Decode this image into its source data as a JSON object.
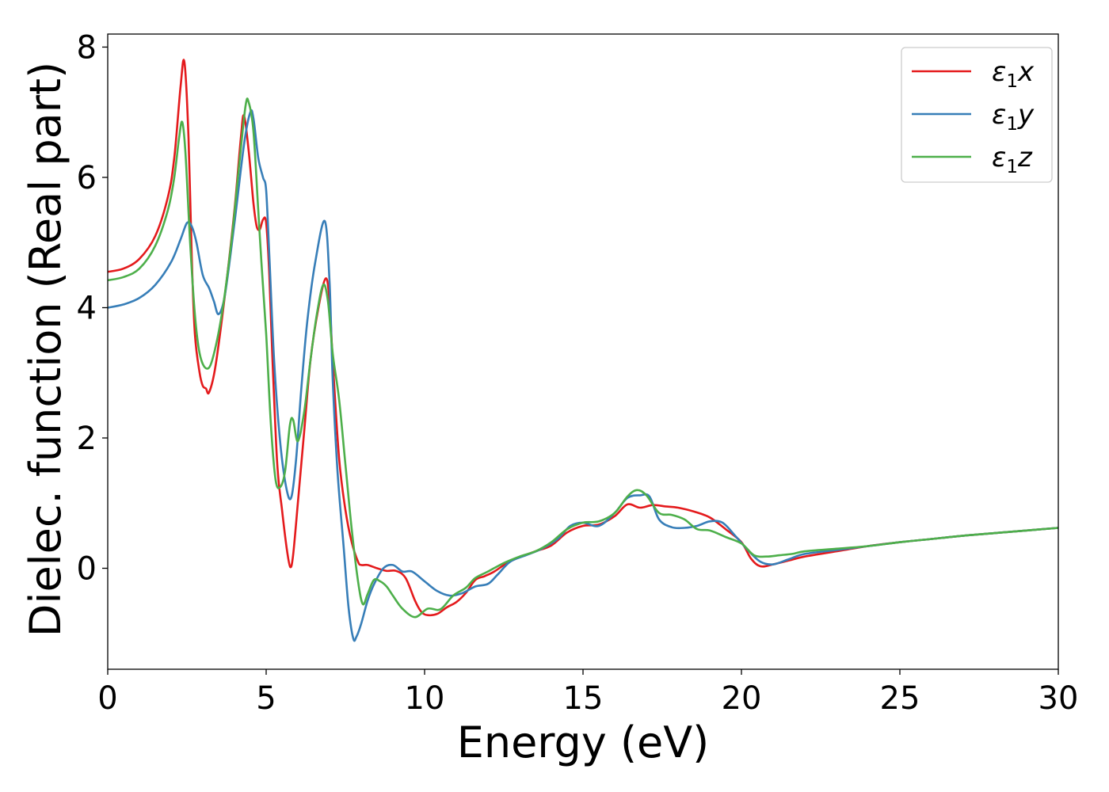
{
  "chart_data": {
    "type": "line",
    "title": "",
    "xlabel": "Energy (eV)",
    "ylabel": "Dielec. function (Real part)",
    "xlim": [
      0,
      30
    ],
    "ylim": [
      -1.55,
      8.2
    ],
    "xticks": [
      0,
      5,
      10,
      15,
      20,
      25,
      30
    ],
    "yticks": [
      0,
      2,
      4,
      6,
      8
    ],
    "grid": false,
    "legend_position": "top-right",
    "series": [
      {
        "name": "ε₁x",
        "symbol": "ε",
        "subscript": "1",
        "axis": "x",
        "color": "#e41a1c",
        "points": [
          [
            0,
            4.55
          ],
          [
            0.5,
            4.6
          ],
          [
            1.0,
            4.75
          ],
          [
            1.5,
            5.1
          ],
          [
            1.9,
            5.7
          ],
          [
            2.1,
            6.3
          ],
          [
            2.3,
            7.4
          ],
          [
            2.42,
            7.77
          ],
          [
            2.55,
            6.6
          ],
          [
            2.65,
            4.8
          ],
          [
            2.75,
            3.6
          ],
          [
            2.9,
            3.0
          ],
          [
            3.0,
            2.8
          ],
          [
            3.1,
            2.76
          ],
          [
            3.2,
            2.7
          ],
          [
            3.4,
            3.1
          ],
          [
            3.7,
            4.2
          ],
          [
            4.0,
            5.5
          ],
          [
            4.2,
            6.6
          ],
          [
            4.3,
            6.95
          ],
          [
            4.45,
            6.4
          ],
          [
            4.6,
            5.6
          ],
          [
            4.7,
            5.25
          ],
          [
            4.8,
            5.2
          ],
          [
            4.9,
            5.35
          ],
          [
            5.0,
            5.3
          ],
          [
            5.1,
            4.5
          ],
          [
            5.2,
            3.2
          ],
          [
            5.35,
            1.6
          ],
          [
            5.5,
            0.9
          ],
          [
            5.65,
            0.3
          ],
          [
            5.76,
            0.02
          ],
          [
            5.85,
            0.2
          ],
          [
            6.0,
            1.0
          ],
          [
            6.2,
            2.1
          ],
          [
            6.4,
            3.2
          ],
          [
            6.65,
            4.0
          ],
          [
            6.88,
            4.45
          ],
          [
            7.0,
            4.1
          ],
          [
            7.1,
            3.2
          ],
          [
            7.3,
            1.7
          ],
          [
            7.5,
            0.9
          ],
          [
            7.7,
            0.4
          ],
          [
            7.9,
            0.1
          ],
          [
            8.0,
            0.05
          ],
          [
            8.2,
            0.05
          ],
          [
            8.5,
            0.0
          ],
          [
            8.8,
            -0.04
          ],
          [
            9.1,
            -0.04
          ],
          [
            9.4,
            -0.15
          ],
          [
            9.7,
            -0.5
          ],
          [
            9.9,
            -0.67
          ],
          [
            10.1,
            -0.72
          ],
          [
            10.4,
            -0.7
          ],
          [
            10.7,
            -0.6
          ],
          [
            11.0,
            -0.52
          ],
          [
            11.3,
            -0.38
          ],
          [
            11.6,
            -0.18
          ],
          [
            11.9,
            -0.12
          ],
          [
            12.2,
            -0.05
          ],
          [
            12.6,
            0.08
          ],
          [
            13.0,
            0.17
          ],
          [
            13.5,
            0.26
          ],
          [
            14.0,
            0.35
          ],
          [
            14.5,
            0.55
          ],
          [
            15.0,
            0.65
          ],
          [
            15.5,
            0.67
          ],
          [
            16.0,
            0.8
          ],
          [
            16.4,
            0.98
          ],
          [
            16.8,
            0.93
          ],
          [
            17.2,
            0.97
          ],
          [
            17.6,
            0.95
          ],
          [
            18.0,
            0.93
          ],
          [
            18.5,
            0.87
          ],
          [
            19.0,
            0.78
          ],
          [
            19.5,
            0.6
          ],
          [
            20.0,
            0.4
          ],
          [
            20.3,
            0.15
          ],
          [
            20.6,
            0.03
          ],
          [
            21.0,
            0.06
          ],
          [
            21.5,
            0.12
          ],
          [
            22.0,
            0.18
          ],
          [
            23.0,
            0.26
          ],
          [
            24.0,
            0.34
          ],
          [
            25.0,
            0.4
          ],
          [
            26.0,
            0.45
          ],
          [
            27.0,
            0.5
          ],
          [
            28.0,
            0.54
          ],
          [
            29.0,
            0.58
          ],
          [
            30.0,
            0.62
          ]
        ]
      },
      {
        "name": "ε₁y",
        "symbol": "ε",
        "subscript": "1",
        "axis": "y",
        "color": "#377eb8",
        "points": [
          [
            0,
            4.0
          ],
          [
            0.5,
            4.05
          ],
          [
            1.0,
            4.15
          ],
          [
            1.5,
            4.35
          ],
          [
            2.0,
            4.7
          ],
          [
            2.3,
            5.05
          ],
          [
            2.5,
            5.3
          ],
          [
            2.65,
            5.25
          ],
          [
            2.8,
            5.0
          ],
          [
            3.0,
            4.5
          ],
          [
            3.2,
            4.3
          ],
          [
            3.35,
            4.1
          ],
          [
            3.5,
            3.9
          ],
          [
            3.7,
            4.2
          ],
          [
            4.0,
            5.3
          ],
          [
            4.3,
            6.5
          ],
          [
            4.5,
            7.0
          ],
          [
            4.6,
            6.9
          ],
          [
            4.75,
            6.3
          ],
          [
            4.9,
            6.0
          ],
          [
            5.0,
            5.8
          ],
          [
            5.1,
            4.8
          ],
          [
            5.25,
            3.2
          ],
          [
            5.45,
            1.9
          ],
          [
            5.65,
            1.2
          ],
          [
            5.8,
            1.1
          ],
          [
            5.95,
            1.7
          ],
          [
            6.1,
            2.7
          ],
          [
            6.3,
            3.8
          ],
          [
            6.55,
            4.7
          ],
          [
            6.85,
            5.33
          ],
          [
            7.0,
            4.4
          ],
          [
            7.1,
            2.9
          ],
          [
            7.25,
            1.5
          ],
          [
            7.45,
            0.3
          ],
          [
            7.6,
            -0.6
          ],
          [
            7.75,
            -1.08
          ],
          [
            7.85,
            -1.05
          ],
          [
            8.0,
            -0.85
          ],
          [
            8.2,
            -0.5
          ],
          [
            8.4,
            -0.25
          ],
          [
            8.7,
            0.0
          ],
          [
            9.0,
            0.05
          ],
          [
            9.3,
            -0.05
          ],
          [
            9.6,
            -0.05
          ],
          [
            10.0,
            -0.2
          ],
          [
            10.4,
            -0.35
          ],
          [
            10.8,
            -0.42
          ],
          [
            11.2,
            -0.38
          ],
          [
            11.6,
            -0.28
          ],
          [
            12.0,
            -0.24
          ],
          [
            12.3,
            -0.1
          ],
          [
            12.7,
            0.1
          ],
          [
            13.2,
            0.2
          ],
          [
            13.7,
            0.3
          ],
          [
            14.2,
            0.45
          ],
          [
            14.6,
            0.65
          ],
          [
            15.0,
            0.7
          ],
          [
            15.5,
            0.65
          ],
          [
            16.0,
            0.85
          ],
          [
            16.4,
            1.08
          ],
          [
            16.8,
            1.12
          ],
          [
            17.1,
            1.1
          ],
          [
            17.4,
            0.75
          ],
          [
            17.8,
            0.63
          ],
          [
            18.2,
            0.62
          ],
          [
            18.6,
            0.65
          ],
          [
            19.0,
            0.72
          ],
          [
            19.4,
            0.7
          ],
          [
            19.8,
            0.5
          ],
          [
            20.2,
            0.28
          ],
          [
            20.6,
            0.1
          ],
          [
            21.0,
            0.06
          ],
          [
            21.5,
            0.14
          ],
          [
            22.0,
            0.22
          ],
          [
            23.0,
            0.28
          ],
          [
            24.0,
            0.34
          ],
          [
            25.0,
            0.4
          ],
          [
            26.0,
            0.45
          ],
          [
            27.0,
            0.5
          ],
          [
            28.0,
            0.54
          ],
          [
            29.0,
            0.58
          ],
          [
            30.0,
            0.62
          ]
        ]
      },
      {
        "name": "ε₁z",
        "symbol": "ε",
        "subscript": "1",
        "axis": "z",
        "color": "#4daf4a",
        "points": [
          [
            0,
            4.42
          ],
          [
            0.5,
            4.47
          ],
          [
            1.0,
            4.6
          ],
          [
            1.5,
            4.95
          ],
          [
            1.9,
            5.5
          ],
          [
            2.1,
            6.0
          ],
          [
            2.25,
            6.6
          ],
          [
            2.35,
            6.85
          ],
          [
            2.45,
            6.4
          ],
          [
            2.6,
            5.0
          ],
          [
            2.75,
            3.9
          ],
          [
            2.9,
            3.3
          ],
          [
            3.1,
            3.07
          ],
          [
            3.3,
            3.2
          ],
          [
            3.6,
            3.9
          ],
          [
            3.9,
            5.0
          ],
          [
            4.15,
            6.2
          ],
          [
            4.35,
            7.1
          ],
          [
            4.45,
            7.15
          ],
          [
            4.6,
            6.7
          ],
          [
            4.75,
            5.5
          ],
          [
            4.85,
            4.7
          ],
          [
            5.0,
            3.6
          ],
          [
            5.15,
            2.2
          ],
          [
            5.3,
            1.35
          ],
          [
            5.45,
            1.25
          ],
          [
            5.6,
            1.5
          ],
          [
            5.75,
            2.2
          ],
          [
            5.85,
            2.28
          ],
          [
            6.0,
            1.95
          ],
          [
            6.2,
            2.4
          ],
          [
            6.4,
            3.2
          ],
          [
            6.6,
            3.9
          ],
          [
            6.8,
            4.35
          ],
          [
            6.95,
            4.1
          ],
          [
            7.1,
            3.3
          ],
          [
            7.3,
            2.6
          ],
          [
            7.5,
            1.6
          ],
          [
            7.7,
            0.6
          ],
          [
            7.9,
            -0.2
          ],
          [
            8.05,
            -0.55
          ],
          [
            8.2,
            -0.4
          ],
          [
            8.4,
            -0.18
          ],
          [
            8.6,
            -0.2
          ],
          [
            8.8,
            -0.28
          ],
          [
            9.0,
            -0.42
          ],
          [
            9.3,
            -0.62
          ],
          [
            9.7,
            -0.75
          ],
          [
            10.1,
            -0.62
          ],
          [
            10.5,
            -0.63
          ],
          [
            10.9,
            -0.42
          ],
          [
            11.3,
            -0.3
          ],
          [
            11.6,
            -0.15
          ],
          [
            12.0,
            -0.05
          ],
          [
            12.5,
            0.08
          ],
          [
            13.0,
            0.18
          ],
          [
            13.5,
            0.26
          ],
          [
            14.0,
            0.4
          ],
          [
            14.5,
            0.6
          ],
          [
            15.0,
            0.7
          ],
          [
            15.5,
            0.72
          ],
          [
            16.0,
            0.85
          ],
          [
            16.4,
            1.1
          ],
          [
            16.7,
            1.2
          ],
          [
            17.0,
            1.12
          ],
          [
            17.4,
            0.85
          ],
          [
            17.8,
            0.82
          ],
          [
            18.2,
            0.75
          ],
          [
            18.6,
            0.6
          ],
          [
            19.0,
            0.58
          ],
          [
            19.5,
            0.48
          ],
          [
            20.0,
            0.38
          ],
          [
            20.4,
            0.2
          ],
          [
            20.8,
            0.18
          ],
          [
            21.2,
            0.2
          ],
          [
            21.6,
            0.22
          ],
          [
            22.0,
            0.26
          ],
          [
            23.0,
            0.3
          ],
          [
            24.0,
            0.34
          ],
          [
            25.0,
            0.4
          ],
          [
            26.0,
            0.45
          ],
          [
            27.0,
            0.5
          ],
          [
            28.0,
            0.54
          ],
          [
            29.0,
            0.58
          ],
          [
            30.0,
            0.62
          ]
        ]
      }
    ]
  }
}
